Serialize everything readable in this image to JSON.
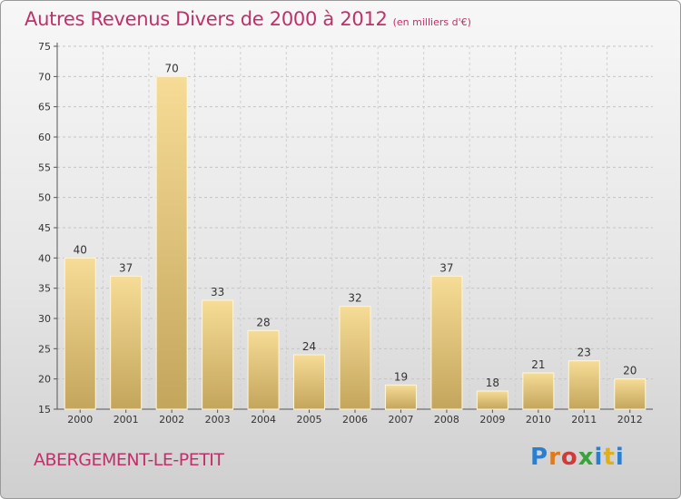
{
  "chart_data": {
    "type": "bar",
    "title": "Autres Revenus Divers de 2000 à 2012",
    "subtitle": "(en milliers d'€)",
    "categories": [
      "2000",
      "2001",
      "2002",
      "2003",
      "2004",
      "2005",
      "2006",
      "2007",
      "2008",
      "2009",
      "2010",
      "2011",
      "2012"
    ],
    "values": [
      40,
      37,
      70,
      33,
      28,
      24,
      32,
      19,
      37,
      18,
      21,
      23,
      20
    ],
    "ylim": [
      15,
      75
    ],
    "yticks": [
      15,
      20,
      25,
      30,
      35,
      40,
      45,
      50,
      55,
      60,
      65,
      70,
      75
    ],
    "grid": true,
    "legend": "none",
    "colors": {
      "bar_light": "#f6dc96",
      "bar_dark": "#c4a55c",
      "title": "#c0306a"
    }
  },
  "footer": {
    "commune": "ABERGEMENT-LE-PETIT",
    "logo": [
      "P",
      "r",
      "o",
      "x",
      "i",
      "t",
      "i"
    ]
  }
}
